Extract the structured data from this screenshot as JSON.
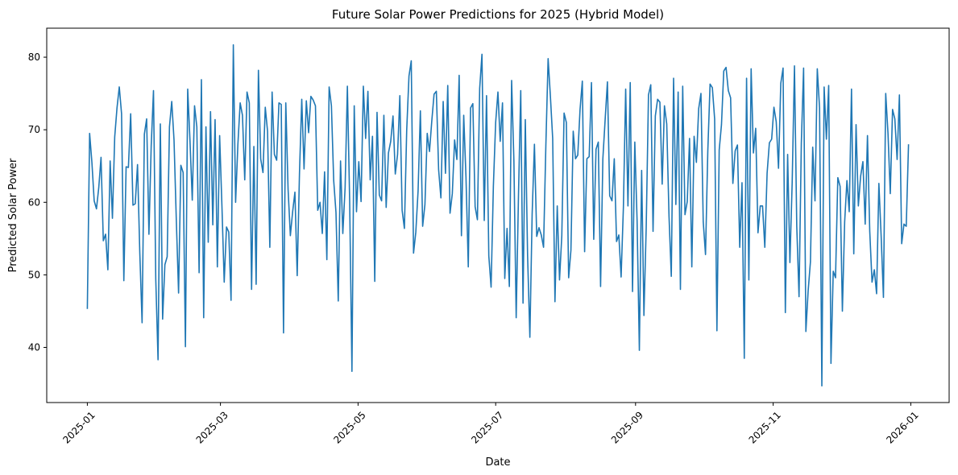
{
  "chart_data": {
    "type": "line",
    "title": "Future Solar Power Predictions for 2025 (Hybrid Model)",
    "xlabel": "Date",
    "ylabel": "Predicted Solar Power",
    "x_range": [
      "2025-01-01",
      "2025-12-31"
    ],
    "xlim": [
      "2024-12-14",
      "2026-01-18"
    ],
    "ylim": [
      32.4,
      84.0
    ],
    "x_ticks": [
      "2025-01",
      "2025-03",
      "2025-05",
      "2025-07",
      "2025-09",
      "2025-11",
      "2026-01"
    ],
    "y_ticks": [
      40,
      50,
      60,
      70,
      80
    ],
    "grid": false,
    "legend": "none",
    "color": "#1f77b4",
    "series": [
      {
        "values": [
          45.3,
          69.5,
          65.5,
          60.2,
          59.1,
          62.0,
          66.2,
          54.7,
          55.6,
          50.7,
          65.7,
          57.8,
          69.0,
          73.0,
          75.9,
          72.2,
          49.2,
          64.9,
          64.8,
          72.2,
          59.6,
          59.8,
          65.2,
          53.0,
          43.4,
          69.4,
          71.5,
          55.6,
          67.8,
          75.4,
          49.4,
          38.3,
          70.8,
          43.9,
          51.4,
          52.5,
          70.4,
          73.9,
          68.6,
          57.6,
          47.5,
          65.1,
          64.1,
          40.1,
          75.6,
          68.5,
          60.3,
          73.3,
          70.4,
          50.3,
          76.9,
          44.1,
          70.4,
          54.5,
          72.5,
          56.9,
          71.4,
          51.1,
          69.2,
          59.5,
          49.0,
          56.6,
          55.9,
          46.5,
          81.7,
          60.0,
          68.0,
          73.7,
          72.0,
          63.1,
          75.2,
          73.7,
          48.0,
          67.7,
          48.7,
          78.2,
          66.0,
          64.1,
          73.1,
          69.8,
          53.8,
          75.2,
          66.6,
          65.8,
          73.7,
          73.5,
          42.0,
          73.7,
          61.8,
          55.4,
          58.7,
          61.4,
          49.9,
          64.0,
          74.2,
          64.6,
          74.0,
          69.6,
          74.6,
          74.1,
          73.3,
          58.9,
          60.0,
          55.7,
          64.2,
          52.1,
          75.9,
          73.3,
          63.0,
          58.6,
          46.4,
          65.7,
          55.7,
          62.0,
          76.0,
          60.1,
          36.7,
          73.3,
          58.7,
          65.6,
          60.1,
          76.0,
          68.8,
          75.3,
          63.1,
          69.1,
          49.1,
          72.4,
          61.0,
          60.2,
          72.0,
          59.3,
          66.8,
          68.4,
          71.9,
          63.9,
          66.6,
          74.7,
          58.9,
          56.4,
          69.9,
          77.4,
          79.5,
          53.0,
          55.9,
          61.6,
          72.6,
          56.7,
          59.7,
          69.5,
          67.0,
          71.2,
          74.9,
          75.3,
          64.5,
          60.6,
          73.9,
          64.0,
          76.1,
          58.5,
          61.2,
          68.6,
          65.9,
          77.5,
          55.4,
          72.0,
          63.4,
          51.1,
          73.0,
          73.6,
          59.4,
          57.6,
          75.7,
          80.4,
          57.5,
          74.7,
          52.6,
          48.3,
          62.2,
          71.0,
          75.2,
          68.4,
          73.7,
          49.5,
          56.4,
          48.4,
          76.8,
          65.7,
          44.1,
          60.8,
          75.4,
          46.1,
          71.4,
          52.7,
          41.4,
          58.4,
          68.0,
          55.3,
          56.5,
          55.5,
          53.8,
          67.7,
          79.8,
          74.6,
          68.8,
          46.3,
          59.5,
          49.3,
          55.4,
          72.3,
          71.0,
          49.6,
          53.4,
          69.8,
          66.0,
          66.5,
          72.8,
          76.7,
          53.2,
          66.0,
          66.3,
          76.5,
          54.9,
          67.3,
          68.3,
          48.4,
          66.0,
          71.4,
          76.6,
          60.9,
          60.2,
          66.0,
          54.6,
          55.5,
          49.7,
          59.3,
          75.6,
          59.5,
          76.5,
          47.7,
          68.3,
          57.5,
          39.6,
          64.4,
          44.4,
          56.5,
          74.8,
          76.2,
          56.0,
          71.9,
          74.2,
          73.8,
          62.5,
          73.3,
          70.8,
          58.1,
          49.8,
          77.1,
          59.7,
          75.2,
          48.0,
          76.0,
          58.3,
          60.1,
          68.8,
          51.1,
          69.1,
          65.5,
          72.9,
          75.0,
          57.3,
          52.8,
          67.0,
          76.3,
          75.8,
          71.5,
          42.3,
          67.2,
          70.7,
          78.1,
          78.6,
          75.4,
          74.4,
          62.6,
          67.1,
          67.9,
          53.8,
          62.7,
          38.5,
          77.1,
          49.3,
          78.4,
          66.8,
          70.2,
          55.8,
          59.5,
          59.5,
          53.8,
          64.0,
          68.2,
          68.7,
          73.1,
          71.1,
          64.7,
          76.4,
          78.5,
          44.8,
          66.6,
          51.7,
          62.8,
          78.8,
          56.7,
          47.0,
          68.1,
          78.5,
          42.2,
          47.8,
          51.8,
          67.6,
          60.2,
          78.4,
          73.0,
          34.7,
          75.9,
          68.7,
          76.1,
          37.8,
          50.5,
          49.6,
          63.4,
          62.2,
          45.0,
          57.3,
          63.0,
          58.7,
          75.6,
          52.9,
          70.7,
          59.5,
          63.6,
          65.6,
          57.0,
          69.2,
          56.0,
          49.0,
          50.7,
          47.4,
          62.6,
          55.3,
          46.9,
          75.0,
          69.5,
          61.2,
          72.8,
          71.5,
          65.9,
          74.8,
          54.3,
          57.0,
          56.7,
          68.0
        ]
      }
    ]
  }
}
